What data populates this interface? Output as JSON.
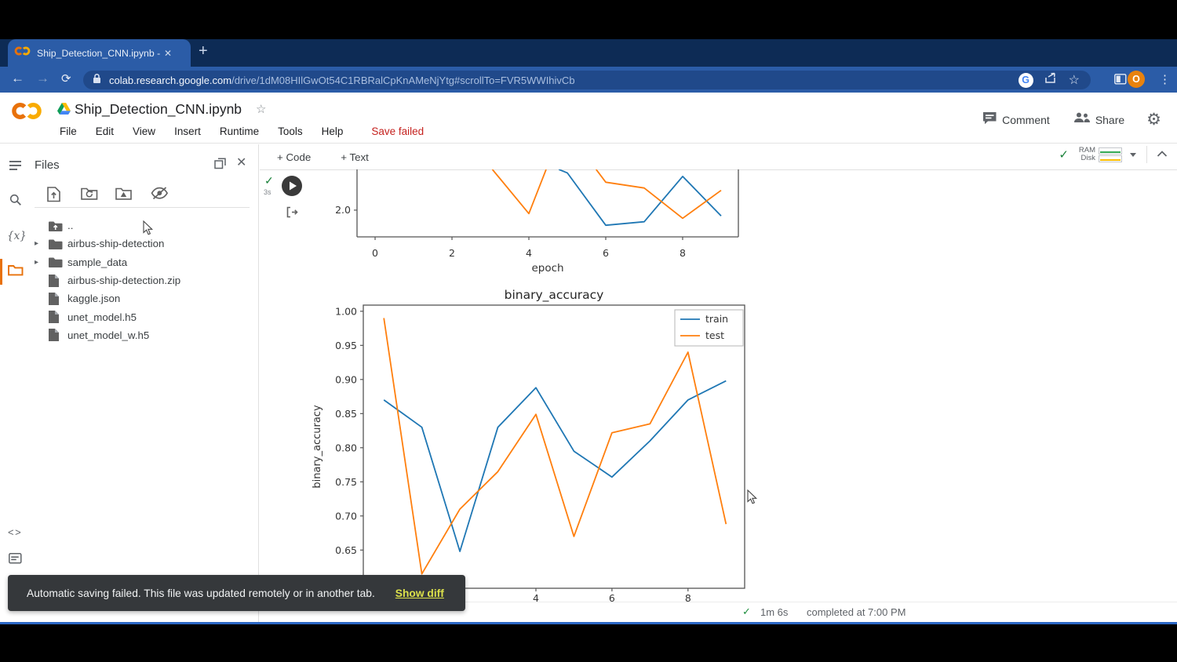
{
  "browser": {
    "tab_title": "Ship_Detection_CNN.ipynb - Cola",
    "url_domain": "colab.research.google.com",
    "url_path": "/drive/1dM08HIlGwOt54C1RBRalCpKnAMeNjYtg#scrollTo=FVR5WWIhivCb",
    "avatar_initial": "O"
  },
  "header": {
    "title": "Ship_Detection_CNN.ipynb",
    "menus": [
      "File",
      "Edit",
      "View",
      "Insert",
      "Runtime",
      "Tools",
      "Help"
    ],
    "save_status": "Save failed",
    "comment_label": "Comment",
    "share_label": "Share"
  },
  "notebook_toolbar": {
    "add_code": "+ Code",
    "add_text": "+ Text",
    "ram_label": "RAM",
    "disk_label": "Disk",
    "ram_color": "#34a853",
    "disk_color": "#fbbc04"
  },
  "files_panel": {
    "title": "Files",
    "tree": [
      {
        "label": "..",
        "type": "folder-up",
        "expandable": false
      },
      {
        "label": "airbus-ship-detection",
        "type": "folder",
        "expandable": true
      },
      {
        "label": "sample_data",
        "type": "folder",
        "expandable": true
      },
      {
        "label": "airbus-ship-detection.zip",
        "type": "file",
        "expandable": false
      },
      {
        "label": "kaggle.json",
        "type": "file",
        "expandable": false
      },
      {
        "label": "unet_model.h5",
        "type": "file",
        "expandable": false
      },
      {
        "label": "unet_model_w.h5",
        "type": "file",
        "expandable": false
      }
    ]
  },
  "cell": {
    "exec_time": "3s"
  },
  "toast": {
    "message": "Automatic saving failed. This file was updated remotely or in another tab.",
    "action_label": "Show diff"
  },
  "output_footer": {
    "duration": "1m 6s",
    "completed": "completed at 7:00 PM"
  },
  "chart_data": [
    {
      "id": "loss-chart-partial",
      "type": "line",
      "note": "upper portion of figure scrolled out of view",
      "xlabel": "epoch",
      "x_tick_labels": [
        "0",
        "2",
        "4",
        "6",
        "8"
      ],
      "y_tick_labels": [
        "2.0"
      ],
      "xlim": [
        -0.47,
        9.45
      ],
      "ylim_visible": [
        1.77,
        2.35
      ],
      "series": [
        {
          "name": "train",
          "color": "#1f77b4",
          "points": [
            [
              4.78,
              2.35
            ],
            [
              5,
              2.32
            ],
            [
              6,
              1.87
            ],
            [
              7,
              1.9
            ],
            [
              8,
              2.29
            ],
            [
              9,
              1.95
            ]
          ]
        },
        {
          "name": "test",
          "color": "#ff7f0e",
          "points": [
            [
              3.05,
              2.35
            ],
            [
              4,
              1.97
            ],
            [
              4.45,
              2.35
            ]
          ]
        },
        {
          "name": "test",
          "color": "#ff7f0e",
          "points": [
            [
              5.75,
              2.35
            ],
            [
              6,
              2.24
            ],
            [
              7,
              2.19
            ],
            [
              8,
              1.93
            ],
            [
              9,
              2.17
            ]
          ]
        }
      ]
    },
    {
      "id": "binary-accuracy-chart",
      "type": "line",
      "title": "binary_accuracy",
      "ylabel": "binary_accuracy",
      "x": [
        0,
        1,
        2,
        3,
        4,
        5,
        6,
        7,
        8,
        9
      ],
      "x_tick_labels": [
        "0",
        "2",
        "4",
        "6",
        "8"
      ],
      "y_tick_labels": [
        "0.65",
        "0.70",
        "0.75",
        "0.80",
        "0.85",
        "0.90",
        "0.95",
        "1.00"
      ],
      "xlim": [
        -0.54,
        9.49
      ],
      "ylim": [
        0.594,
        1.009
      ],
      "legend": {
        "position": "upper right",
        "entries": [
          "train",
          "test"
        ]
      },
      "series": [
        {
          "name": "train",
          "color": "#1f77b4",
          "values": [
            0.87,
            0.83,
            0.648,
            0.83,
            0.888,
            0.795,
            0.757,
            0.81,
            0.87,
            0.898
          ]
        },
        {
          "name": "test",
          "color": "#ff7f0e",
          "values": [
            0.99,
            0.615,
            0.71,
            0.765,
            0.849,
            0.67,
            0.822,
            0.835,
            0.94,
            0.688
          ]
        }
      ]
    }
  ]
}
